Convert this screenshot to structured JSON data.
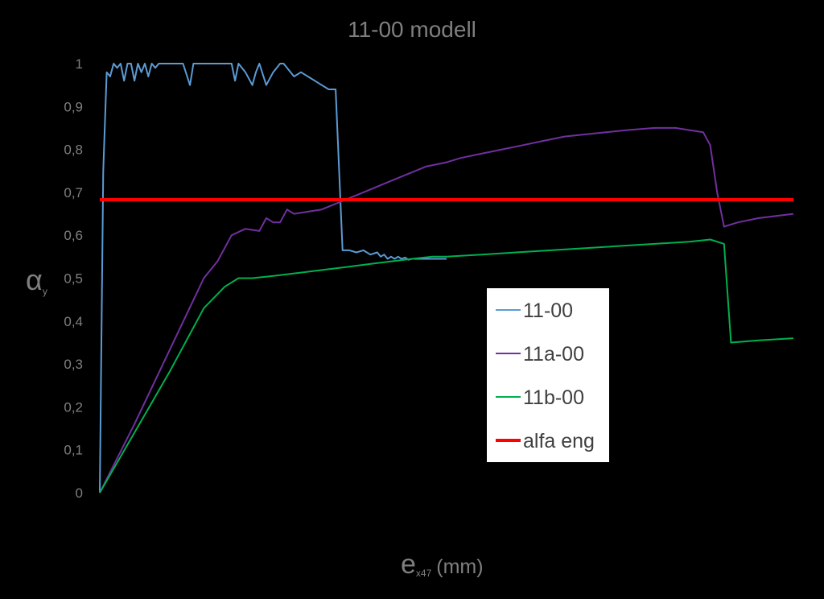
{
  "chart_data": {
    "type": "line",
    "title": "11-00 modell",
    "ylabel": {
      "main": "α",
      "sub": "y"
    },
    "xlabel": {
      "main": "e",
      "sub": "x47",
      "unit": "(mm)"
    },
    "ylim": [
      0,
      1
    ],
    "xlim": [
      0,
      100
    ],
    "yticks": [
      "0",
      "0,1",
      "0,2",
      "0,3",
      "0,4",
      "0,5",
      "0,6",
      "0,7",
      "0,8",
      "0,9",
      "1"
    ],
    "xticks": [],
    "grid": false,
    "legend_position": "right",
    "series": [
      {
        "name": "11-00",
        "color": "#5b9bd5",
        "x": [
          0,
          0.5,
          1,
          1.5,
          2,
          2.5,
          3,
          3.5,
          4,
          4.5,
          5,
          5.5,
          6,
          6.5,
          7,
          7.5,
          8,
          8.5,
          9,
          9.5,
          10,
          11,
          12,
          13,
          13.5,
          14,
          15,
          16,
          17,
          18,
          19,
          19.5,
          20,
          21,
          22,
          22.5,
          23,
          24,
          25,
          26,
          26.5,
          27,
          28,
          29,
          30,
          31,
          32,
          33,
          34,
          35,
          36,
          37,
          38,
          39,
          40,
          40.5,
          41,
          41.5,
          42,
          42.5,
          43,
          43.5,
          44,
          44.5,
          45,
          45.5,
          46,
          46.5,
          47,
          47.5,
          48,
          49,
          50
        ],
        "values": [
          0,
          0.75,
          0.98,
          0.97,
          1.0,
          0.99,
          1.0,
          0.96,
          1.0,
          1.0,
          0.96,
          1.0,
          0.98,
          1.0,
          0.97,
          1.0,
          0.99,
          1.0,
          1.0,
          1.0,
          1.0,
          1.0,
          1.0,
          0.95,
          1.0,
          1.0,
          1.0,
          1.0,
          1.0,
          1.0,
          1.0,
          0.96,
          1.0,
          0.98,
          0.95,
          0.98,
          1.0,
          0.95,
          0.98,
          1.0,
          1.0,
          0.99,
          0.97,
          0.98,
          0.97,
          0.96,
          0.95,
          0.94,
          0.94,
          0.565,
          0.565,
          0.56,
          0.565,
          0.555,
          0.56,
          0.55,
          0.555,
          0.545,
          0.55,
          0.545,
          0.55,
          0.545,
          0.548,
          0.543,
          0.545,
          0.545,
          0.545,
          0.545,
          0.545,
          0.545,
          0.545,
          0.545,
          0.545
        ]
      },
      {
        "name": "11a-00",
        "color": "#7030a0",
        "x": [
          0,
          5,
          10,
          15,
          17,
          19,
          21,
          23,
          24,
          25,
          26,
          27,
          28,
          30,
          32,
          35,
          38,
          41,
          44,
          47,
          50,
          52,
          55,
          58,
          61,
          64,
          67,
          70,
          73,
          76,
          80,
          83,
          85,
          87,
          88,
          89,
          90,
          92,
          95,
          100
        ],
        "values": [
          0,
          0.16,
          0.33,
          0.5,
          0.54,
          0.6,
          0.615,
          0.61,
          0.64,
          0.63,
          0.63,
          0.66,
          0.65,
          0.655,
          0.66,
          0.68,
          0.7,
          0.72,
          0.74,
          0.76,
          0.77,
          0.78,
          0.79,
          0.8,
          0.81,
          0.82,
          0.83,
          0.835,
          0.84,
          0.845,
          0.85,
          0.85,
          0.845,
          0.84,
          0.81,
          0.7,
          0.62,
          0.63,
          0.64,
          0.65
        ]
      },
      {
        "name": "11b-00",
        "color": "#00b050",
        "x": [
          0,
          5,
          10,
          15,
          18,
          20,
          22,
          25,
          30,
          35,
          40,
          45,
          48,
          50,
          55,
          60,
          65,
          70,
          75,
          80,
          85,
          88,
          89,
          90,
          91,
          95,
          100
        ],
        "values": [
          0,
          0.14,
          0.28,
          0.43,
          0.48,
          0.5,
          0.5,
          0.505,
          0.515,
          0.525,
          0.535,
          0.545,
          0.55,
          0.55,
          0.555,
          0.56,
          0.565,
          0.57,
          0.575,
          0.58,
          0.585,
          0.59,
          0.585,
          0.58,
          0.35,
          0.355,
          0.36
        ]
      },
      {
        "name": "alfa eng",
        "color": "#ff0000",
        "x": [
          0,
          100
        ],
        "values": [
          0.683,
          0.683
        ]
      }
    ]
  }
}
